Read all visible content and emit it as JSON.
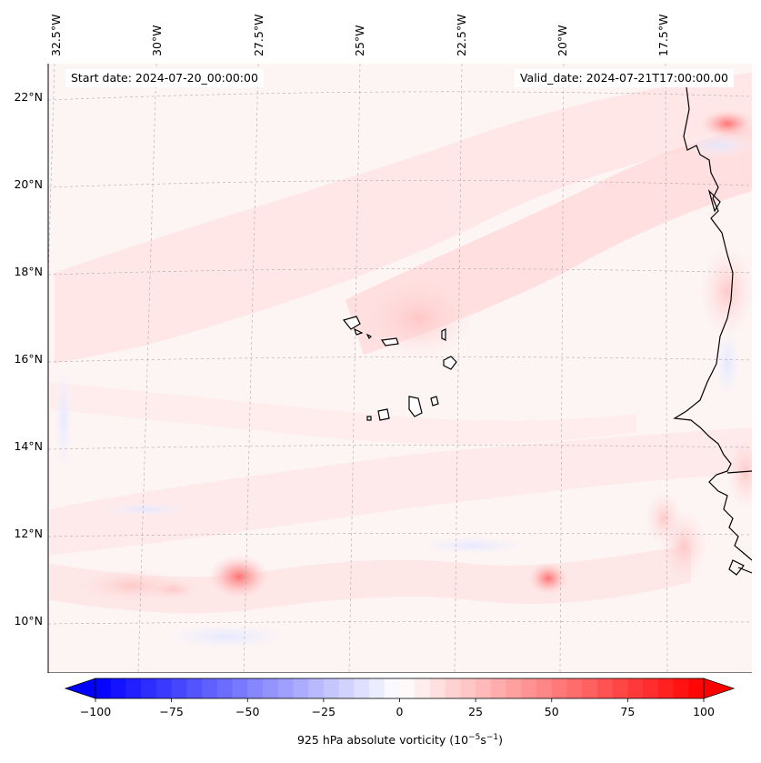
{
  "map": {
    "longitude_labels": [
      "32.5°W",
      "30°W",
      "27.5°W",
      "25°W",
      "22.5°W",
      "20°W",
      "17.5°W"
    ],
    "latitude_labels": [
      "22°N",
      "20°N",
      "18°N",
      "16°N",
      "14°N",
      "12°N",
      "10°N"
    ],
    "start_date": "Start date: 2024-07-20_00:00:00",
    "valid_date": "Valid_date: 2024-07-21T17:00:00.00"
  },
  "colorbar": {
    "ticks": [
      "−100",
      "−75",
      "−50",
      "−25",
      "0",
      "25",
      "50",
      "75",
      "100"
    ],
    "label_main": "925 hPa absolute vorticity (10",
    "label_exp1": "−5",
    "label_mid": "s",
    "label_exp2": "−1",
    "label_end": ")",
    "min": -100,
    "max": 100,
    "colormap": "bwr"
  },
  "colors": {
    "background_field": "#fdf4f4",
    "positive_max": "#ff0000",
    "negative_max": "#0000ff",
    "coastline": "#000000"
  }
}
